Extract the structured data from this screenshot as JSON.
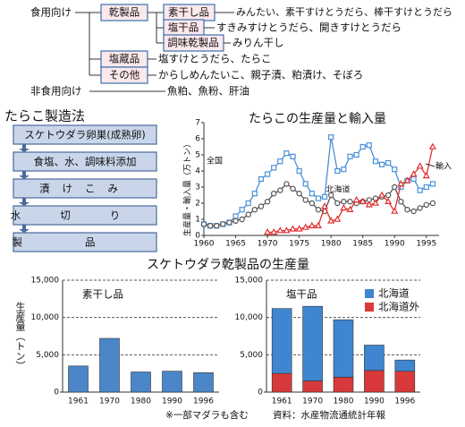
{
  "tree": {
    "groups": [
      {
        "label": "食用向け",
        "children": [
          {
            "label": "乾製品",
            "children": [
              {
                "label": "素干し品",
                "desc": "みんたい、素干すけとうだら、棒干すけとうだら"
              },
              {
                "label": "塩干品",
                "desc": "すきみすけとうだら、開きすけとうだら"
              },
              {
                "label": "調味乾製品",
                "desc": "みりん干し"
              }
            ]
          },
          {
            "label": "塩蔵品",
            "desc": "塩すけとうだら、たらこ"
          },
          {
            "label": "その他",
            "desc": "からしめんたいこ、親子漬、粕漬け、そぼろ"
          }
        ]
      },
      {
        "label": "非食用向け",
        "desc": "魚粕、魚粉、肝油"
      }
    ]
  },
  "process": {
    "title": "たらこ製造法",
    "steps": [
      "スケトウダラ卵巣(成熟卵)",
      "食塩、水、調味料添加",
      "漬けこみ",
      "水切り",
      "製品"
    ]
  },
  "bar_section": {
    "title": "スケトウダラ乾製品の生産量",
    "note": "※一部マダラも含む",
    "source": "資料：水産物流通統計年報"
  },
  "chart_data": [
    {
      "type": "line",
      "title": "たらこの生産量と輸入量",
      "ylabel": "生産量・輸入量（万トン）",
      "x": [
        1960,
        1961,
        1962,
        1963,
        1964,
        1965,
        1966,
        1967,
        1968,
        1969,
        1970,
        1971,
        1972,
        1973,
        1974,
        1975,
        1976,
        1977,
        1978,
        1979,
        1980,
        1981,
        1982,
        1983,
        1984,
        1985,
        1986,
        1987,
        1988,
        1989,
        1990,
        1991,
        1992,
        1993,
        1994,
        1995,
        1996
      ],
      "xlim": [
        1960,
        1997
      ],
      "xticks": [
        1960,
        1965,
        1970,
        1975,
        1980,
        1985,
        1990,
        1995
      ],
      "ylim": [
        0,
        7
      ],
      "yticks": [
        0,
        1,
        2,
        3,
        4,
        5,
        6,
        7
      ],
      "series": [
        {
          "name": "全国",
          "color": "#4a90d9",
          "marker": "square",
          "values": [
            0.7,
            0.6,
            0.6,
            0.7,
            0.8,
            1.2,
            1.6,
            2.0,
            2.6,
            3.5,
            3.8,
            4.2,
            4.6,
            5.1,
            4.9,
            4.0,
            3.2,
            2.6,
            2.3,
            2.4,
            6.1,
            4.0,
            4.1,
            4.9,
            5.0,
            5.5,
            5.6,
            4.6,
            4.4,
            4.5,
            4.1,
            3.0,
            3.4,
            3.5,
            2.8,
            3.0,
            3.2
          ]
        },
        {
          "name": "北海道",
          "color": "#555555",
          "marker": "circle",
          "values": [
            0.7,
            0.6,
            0.6,
            0.7,
            0.8,
            0.9,
            1.0,
            1.3,
            1.6,
            1.8,
            2.1,
            2.6,
            2.8,
            3.2,
            2.9,
            2.6,
            2.2,
            2.0,
            1.6,
            1.5,
            2.5,
            2.0,
            2.1,
            2.1,
            2.0,
            2.1,
            2.2,
            2.3,
            2.4,
            2.5,
            3.0,
            2.1,
            1.6,
            1.5,
            1.7,
            1.9,
            2.0
          ]
        },
        {
          "name": "輸入",
          "color": "#e03030",
          "marker": "triangle",
          "values": [
            null,
            null,
            null,
            null,
            null,
            null,
            null,
            null,
            null,
            null,
            0.2,
            0.2,
            0.3,
            0.3,
            0.4,
            0.4,
            0.5,
            0.6,
            0.6,
            1.8,
            0.9,
            1.0,
            1.7,
            1.6,
            2.2,
            2.1,
            1.9,
            2.0,
            2.5,
            2.1,
            1.5,
            3.2,
            3.4,
            3.8,
            4.3,
            3.7,
            5.5
          ]
        }
      ]
    },
    {
      "type": "bar",
      "title": "素干し品",
      "ylabel": "生産量（トン）",
      "categories": [
        "1961",
        "1970",
        "1980",
        "1990",
        "1996"
      ],
      "ylim": [
        0,
        15000
      ],
      "yticks": [
        0,
        {
          "value": 5000,
          "label": "5,000"
        },
        {
          "value": 10000,
          "label": "10,000"
        },
        {
          "value": 15000,
          "label": "15,000"
        }
      ],
      "grid": true,
      "series": [
        {
          "name": "素干し品",
          "color": "#4a86c8",
          "values": [
            3500,
            7200,
            2700,
            2800,
            2600
          ]
        }
      ]
    },
    {
      "type": "stacked_bar",
      "title": "塩干品",
      "categories": [
        "1961",
        "1970",
        "1980",
        "1990",
        "1996"
      ],
      "ylim": [
        0,
        15000
      ],
      "yticks": [
        0,
        {
          "value": 5000,
          "label": "5,000"
        },
        {
          "value": 10000,
          "label": "10,000"
        },
        {
          "value": 15000,
          "label": "15,000"
        }
      ],
      "grid": true,
      "legend": "top-right",
      "series": [
        {
          "name": "北海道",
          "color": "#3f86d0",
          "values": [
            8700,
            10000,
            7700,
            3400,
            1500
          ]
        },
        {
          "name": "北海道外",
          "color": "#d8393a",
          "values": [
            2500,
            1500,
            2000,
            2900,
            2800
          ]
        }
      ]
    }
  ]
}
